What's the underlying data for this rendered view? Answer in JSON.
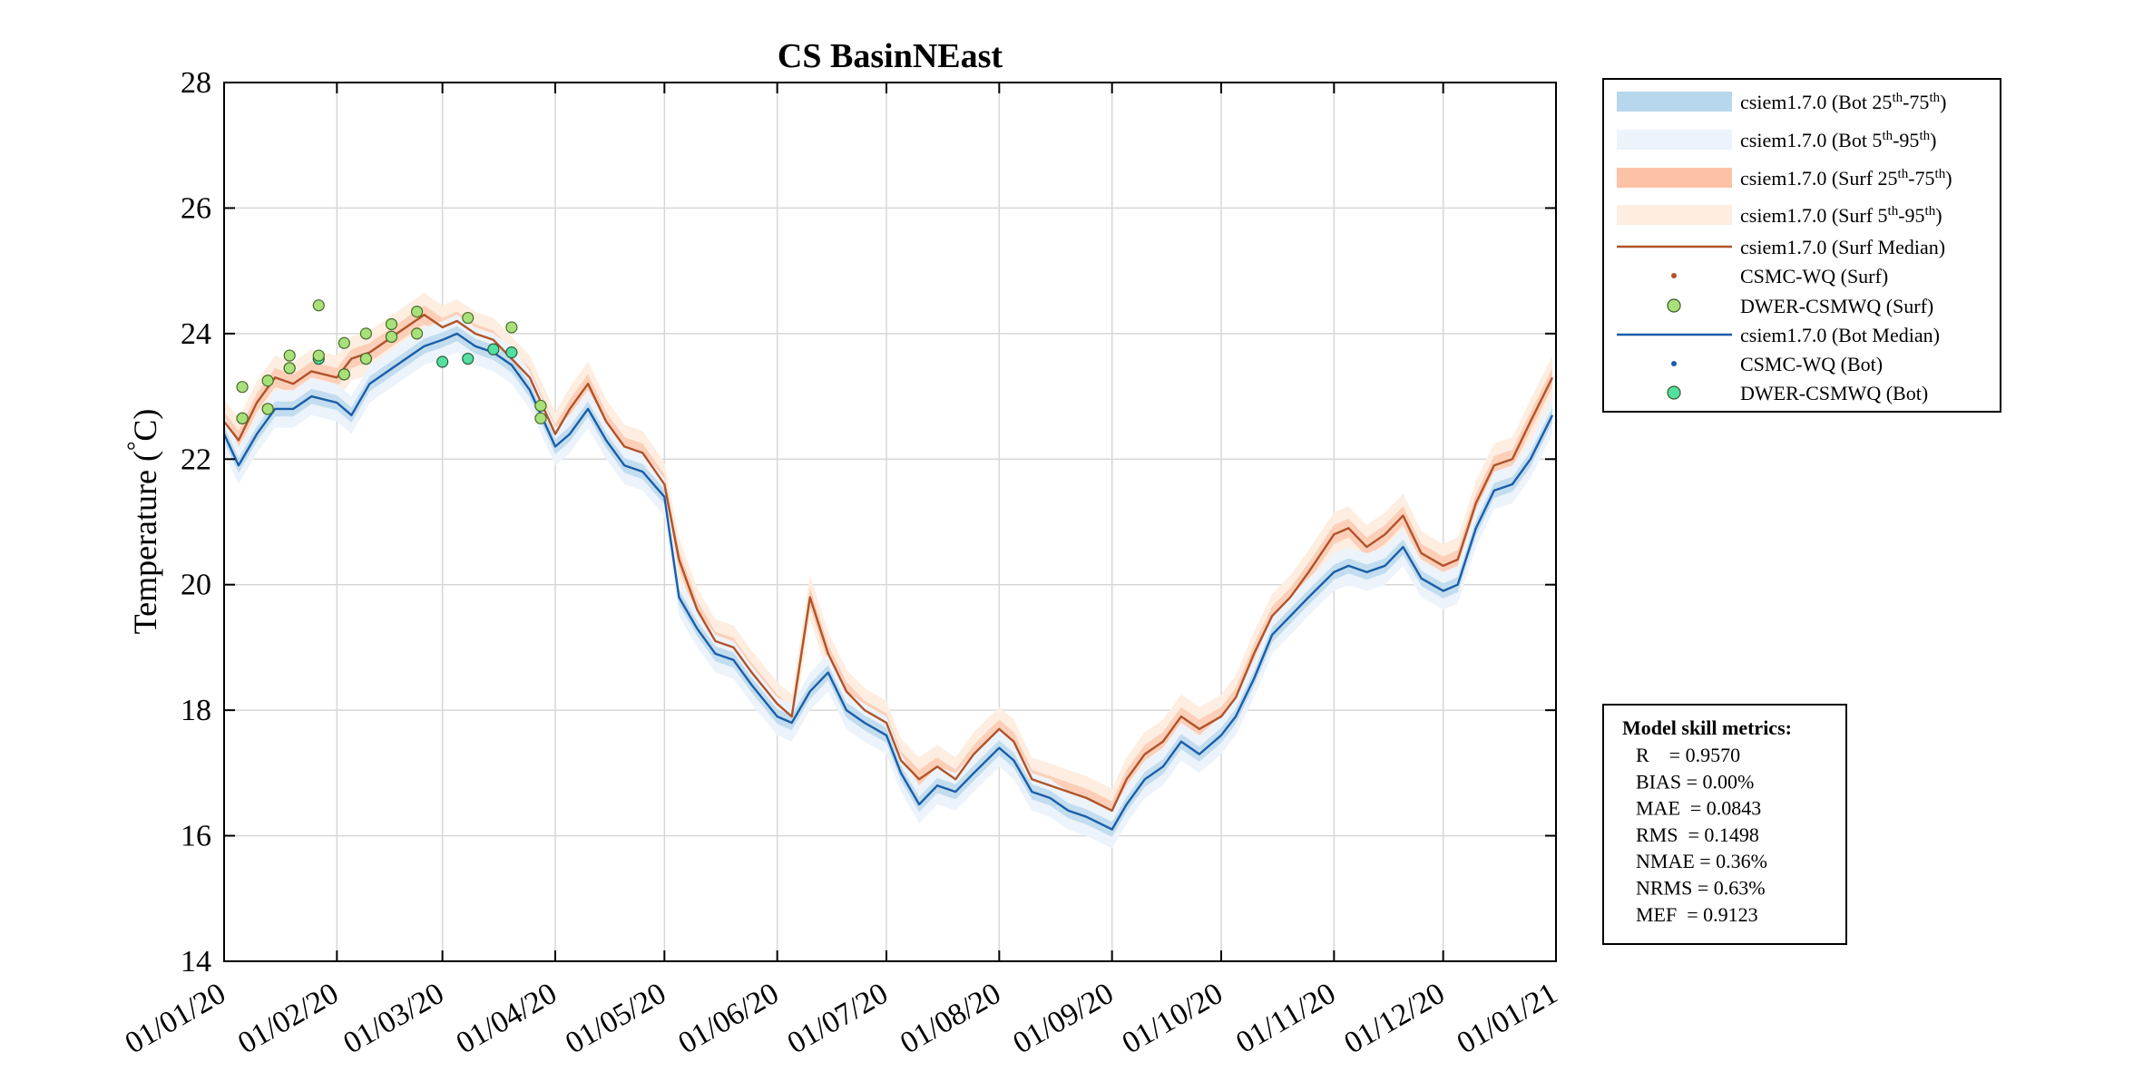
{
  "colors": {
    "surf_median": "#b0532a",
    "bot_median": "#1a5ea8",
    "bot_iqr": "#b7d7ec",
    "bot_90": "#edf3fa",
    "surf_iqr": "#fcc2a6",
    "surf_90": "#fdeee1",
    "dwer_surf": "#a8e07a",
    "dwer_bot": "#52dfa0",
    "csmc_surf": "#b0532a",
    "csmc_bot": "#1a5ea8",
    "grid": "#d7d7d7"
  },
  "chart_data": {
    "type": "line",
    "title": "CS BasinNEast",
    "ylabel": "Temperature (°C)",
    "ylabel_parts": {
      "main": "Temperature (",
      "degree": "°",
      "unit": "C)"
    },
    "ylim": [
      14,
      28
    ],
    "yticks": [
      "14",
      "16",
      "18",
      "20",
      "22",
      "24",
      "26",
      "28"
    ],
    "xlim": [
      "2020-01-01",
      "2021-01-01"
    ],
    "xticks": [
      {
        "date": "2020-01-01",
        "label": "01/01/20"
      },
      {
        "date": "2020-02-01",
        "label": "01/02/20"
      },
      {
        "date": "2020-03-01",
        "label": "01/03/20"
      },
      {
        "date": "2020-04-01",
        "label": "01/04/20"
      },
      {
        "date": "2020-05-01",
        "label": "01/05/20"
      },
      {
        "date": "2020-06-01",
        "label": "01/06/20"
      },
      {
        "date": "2020-07-01",
        "label": "01/07/20"
      },
      {
        "date": "2020-08-01",
        "label": "01/08/20"
      },
      {
        "date": "2020-09-01",
        "label": "01/09/20"
      },
      {
        "date": "2020-10-01",
        "label": "01/10/20"
      },
      {
        "date": "2020-11-01",
        "label": "01/11/20"
      },
      {
        "date": "2020-12-01",
        "label": "01/12/20"
      },
      {
        "date": "2021-01-01",
        "label": "01/01/21"
      }
    ],
    "grid": true,
    "legend_position": "outside-right-top",
    "series": [
      {
        "name": "csiem1.7.0 (Surf Median)",
        "kind": "line",
        "x": [
          "2020-01-01",
          "2020-01-05",
          "2020-01-10",
          "2020-01-15",
          "2020-01-20",
          "2020-01-25",
          "2020-02-01",
          "2020-02-05",
          "2020-02-10",
          "2020-02-15",
          "2020-02-20",
          "2020-02-25",
          "2020-03-01",
          "2020-03-05",
          "2020-03-10",
          "2020-03-15",
          "2020-03-20",
          "2020-03-25",
          "2020-04-01",
          "2020-04-05",
          "2020-04-10",
          "2020-04-15",
          "2020-04-20",
          "2020-04-25",
          "2020-05-01",
          "2020-05-05",
          "2020-05-10",
          "2020-05-15",
          "2020-05-20",
          "2020-05-25",
          "2020-06-01",
          "2020-06-05",
          "2020-06-10",
          "2020-06-15",
          "2020-06-20",
          "2020-06-25",
          "2020-07-01",
          "2020-07-05",
          "2020-07-10",
          "2020-07-15",
          "2020-07-20",
          "2020-07-25",
          "2020-08-01",
          "2020-08-05",
          "2020-08-10",
          "2020-08-15",
          "2020-08-20",
          "2020-08-25",
          "2020-09-01",
          "2020-09-05",
          "2020-09-10",
          "2020-09-15",
          "2020-09-20",
          "2020-09-25",
          "2020-10-01",
          "2020-10-05",
          "2020-10-10",
          "2020-10-15",
          "2020-10-20",
          "2020-10-25",
          "2020-11-01",
          "2020-11-05",
          "2020-11-10",
          "2020-11-15",
          "2020-11-20",
          "2020-11-25",
          "2020-12-01",
          "2020-12-05",
          "2020-12-10",
          "2020-12-15",
          "2020-12-20",
          "2020-12-25",
          "2020-12-31"
        ],
        "y": [
          22.6,
          22.3,
          22.9,
          23.3,
          23.2,
          23.4,
          23.3,
          23.6,
          23.7,
          23.9,
          24.1,
          24.3,
          24.1,
          24.2,
          24.0,
          23.9,
          23.6,
          23.3,
          22.4,
          22.8,
          23.2,
          22.6,
          22.2,
          22.1,
          21.6,
          20.4,
          19.6,
          19.1,
          19.0,
          18.6,
          18.1,
          17.9,
          19.8,
          18.9,
          18.3,
          18.0,
          17.8,
          17.2,
          16.9,
          17.1,
          16.9,
          17.3,
          17.7,
          17.5,
          16.9,
          16.8,
          16.7,
          16.6,
          16.4,
          16.9,
          17.3,
          17.5,
          17.9,
          17.7,
          17.9,
          18.2,
          18.9,
          19.5,
          19.8,
          20.2,
          20.8,
          20.9,
          20.6,
          20.8,
          21.1,
          20.5,
          20.3,
          20.4,
          21.3,
          21.9,
          22.0,
          22.6,
          23.3
        ]
      },
      {
        "name": "csiem1.7.0 (Bot Median)",
        "kind": "line",
        "x": [
          "2020-01-01",
          "2020-01-05",
          "2020-01-10",
          "2020-01-15",
          "2020-01-20",
          "2020-01-25",
          "2020-02-01",
          "2020-02-05",
          "2020-02-10",
          "2020-02-15",
          "2020-02-20",
          "2020-02-25",
          "2020-03-01",
          "2020-03-05",
          "2020-03-10",
          "2020-03-15",
          "2020-03-20",
          "2020-03-25",
          "2020-04-01",
          "2020-04-05",
          "2020-04-10",
          "2020-04-15",
          "2020-04-20",
          "2020-04-25",
          "2020-05-01",
          "2020-05-05",
          "2020-05-10",
          "2020-05-15",
          "2020-05-20",
          "2020-05-25",
          "2020-06-01",
          "2020-06-05",
          "2020-06-10",
          "2020-06-15",
          "2020-06-20",
          "2020-06-25",
          "2020-07-01",
          "2020-07-05",
          "2020-07-10",
          "2020-07-15",
          "2020-07-20",
          "2020-07-25",
          "2020-08-01",
          "2020-08-05",
          "2020-08-10",
          "2020-08-15",
          "2020-08-20",
          "2020-08-25",
          "2020-09-01",
          "2020-09-05",
          "2020-09-10",
          "2020-09-15",
          "2020-09-20",
          "2020-09-25",
          "2020-10-01",
          "2020-10-05",
          "2020-10-10",
          "2020-10-15",
          "2020-10-20",
          "2020-10-25",
          "2020-11-01",
          "2020-11-05",
          "2020-11-10",
          "2020-11-15",
          "2020-11-20",
          "2020-11-25",
          "2020-12-01",
          "2020-12-05",
          "2020-12-10",
          "2020-12-15",
          "2020-12-20",
          "2020-12-25",
          "2020-12-31"
        ],
        "y": [
          22.4,
          21.9,
          22.4,
          22.8,
          22.8,
          23.0,
          22.9,
          22.7,
          23.2,
          23.4,
          23.6,
          23.8,
          23.9,
          24.0,
          23.8,
          23.7,
          23.5,
          23.1,
          22.2,
          22.4,
          22.8,
          22.3,
          21.9,
          21.8,
          21.4,
          19.8,
          19.3,
          18.9,
          18.8,
          18.4,
          17.9,
          17.8,
          18.3,
          18.6,
          18.0,
          17.8,
          17.6,
          17.0,
          16.5,
          16.8,
          16.7,
          17.0,
          17.4,
          17.2,
          16.7,
          16.6,
          16.4,
          16.3,
          16.1,
          16.5,
          16.9,
          17.1,
          17.5,
          17.3,
          17.6,
          17.9,
          18.5,
          19.2,
          19.5,
          19.8,
          20.2,
          20.3,
          20.2,
          20.3,
          20.6,
          20.1,
          19.9,
          20.0,
          20.9,
          21.5,
          21.6,
          22.0,
          22.7
        ]
      },
      {
        "name": "DWER-CSMWQ (Surf)",
        "kind": "scatter",
        "x": [
          "2020-01-06",
          "2020-01-06",
          "2020-01-13",
          "2020-01-13",
          "2020-01-19",
          "2020-01-19",
          "2020-01-27",
          "2020-01-27",
          "2020-02-03",
          "2020-02-03",
          "2020-02-09",
          "2020-02-09",
          "2020-02-16",
          "2020-02-16",
          "2020-02-23",
          "2020-02-23",
          "2020-03-08",
          "2020-03-20",
          "2020-03-28",
          "2020-03-28"
        ],
        "y": [
          23.15,
          22.65,
          23.25,
          22.8,
          23.65,
          23.45,
          24.45,
          23.65,
          23.85,
          23.35,
          24.0,
          23.6,
          24.15,
          23.95,
          24.35,
          24.0,
          24.25,
          24.1,
          22.85,
          22.65
        ]
      },
      {
        "name": "DWER-CSMWQ (Bot)",
        "kind": "scatter",
        "x": [
          "2020-01-06",
          "2020-01-13",
          "2020-01-19",
          "2020-01-27",
          "2020-02-03",
          "2020-02-09",
          "2020-02-16",
          "2020-03-01",
          "2020-03-08",
          "2020-03-15",
          "2020-03-20"
        ],
        "y": [
          22.65,
          22.8,
          23.45,
          23.6,
          23.35,
          23.6,
          23.95,
          23.55,
          23.6,
          23.75,
          23.7
        ]
      }
    ],
    "legend": [
      {
        "kind": "band",
        "color_key": "bot_iqr",
        "text": "csiem1.7.0 (Bot 25",
        "sup1": "th",
        "mid": "-75",
        "sup2": "th",
        "end": ")"
      },
      {
        "kind": "band",
        "color_key": "bot_90",
        "text": "csiem1.7.0 (Bot 5",
        "sup1": "th",
        "mid": "-95",
        "sup2": "th",
        "end": ")"
      },
      {
        "kind": "band",
        "color_key": "surf_iqr",
        "text": "csiem1.7.0 (Surf 25",
        "sup1": "th",
        "mid": "-75",
        "sup2": "th",
        "end": ")"
      },
      {
        "kind": "band",
        "color_key": "surf_90",
        "text": "csiem1.7.0 (Surf 5",
        "sup1": "th",
        "mid": "-95",
        "sup2": "th",
        "end": ")"
      },
      {
        "kind": "line",
        "color_key": "surf_median",
        "text": "csiem1.7.0 (Surf Median)"
      },
      {
        "kind": "dot",
        "color_key": "csmc_surf",
        "text": "CSMC-WQ (Surf)"
      },
      {
        "kind": "circle",
        "color_key": "dwer_surf",
        "text": "DWER-CSMWQ (Surf)"
      },
      {
        "kind": "line",
        "color_key": "bot_median",
        "text": "csiem1.7.0 (Bot Median)"
      },
      {
        "kind": "dot",
        "color_key": "csmc_bot",
        "text": "CSMC-WQ (Bot)"
      },
      {
        "kind": "circle",
        "color_key": "dwer_bot",
        "text": "DWER-CSMWQ (Bot)"
      }
    ],
    "skill_metrics": {
      "heading": "Model skill metrics:",
      "lines": [
        "R    = 0.9570",
        "BIAS = 0.00%",
        "MAE  = 0.0843",
        "RMS  = 0.1498",
        "NMAE = 0.36%",
        "NRMS = 0.63%",
        "MEF  = 0.9123"
      ]
    }
  }
}
